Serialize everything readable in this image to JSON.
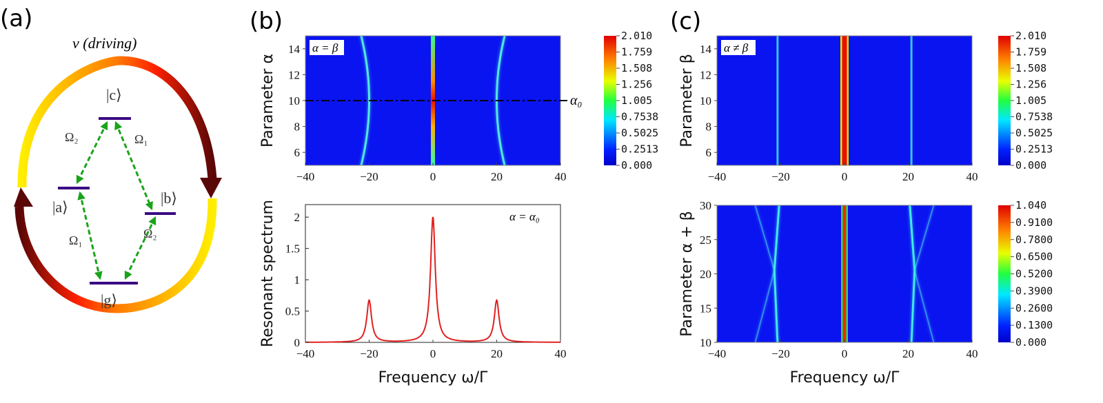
{
  "panel_a": {
    "label": "(a)",
    "driving_label": "ν (driving)",
    "levels": {
      "c": "|c⟩",
      "a": "|a⟩",
      "b": "|b⟩",
      "g": "|g⟩"
    },
    "couplings": {
      "ca": "Ω₂",
      "cb": "Ω₁",
      "ag": "Ω₁",
      "bg": "Ω₂"
    },
    "colors": {
      "level": "#3b0a82",
      "coupling": "#1aa31a",
      "arrow_dark": "#5a0707",
      "arrow_mid": "#ff2a00",
      "arrow_light": "#ffee00"
    }
  },
  "panel_b": {
    "label": "(b)"
  },
  "panel_c": {
    "label": "(c)"
  },
  "chart_data": [
    {
      "id": "b-top",
      "type": "heatmap",
      "annotation": "α = β",
      "ylabel": "Parameter α",
      "xlabel": "",
      "xlim": [
        -40,
        40
      ],
      "ylim": [
        5,
        15
      ],
      "xticks": [
        "−40",
        "−20",
        "0",
        "20",
        "40"
      ],
      "xtick_values": [
        -40,
        -20,
        0,
        20,
        40
      ],
      "yticks": [
        "6",
        "8",
        "10",
        "12",
        "14"
      ],
      "ytick_values": [
        6,
        8,
        10,
        12,
        14
      ],
      "colorbar": [
        "2.010",
        "1.759",
        "1.508",
        "1.256",
        "1.005",
        "0.7538",
        "0.5025",
        "0.2513",
        "0.000"
      ],
      "reference_line": {
        "value": 10,
        "label": "α₀"
      },
      "features": "central peak at ω=0 (max ≈2.0 near α=10); side peaks near ω=±20 bending to ±22.5 at α=5 and α=15"
    },
    {
      "id": "b-bottom",
      "type": "line",
      "annotation": "α = α₀",
      "ylabel": "Resonant spectrum",
      "xlabel": "Frequency ω/Γ",
      "xlim": [
        -40,
        40
      ],
      "ylim": [
        0,
        2.2
      ],
      "xticks": [
        "−40",
        "−20",
        "0",
        "20",
        "40"
      ],
      "xtick_values": [
        -40,
        -20,
        0,
        20,
        40
      ],
      "yticks": [
        "0",
        "0.5",
        "1",
        "1.5",
        "2"
      ],
      "ytick_values": [
        0,
        0.5,
        1,
        1.5,
        2
      ],
      "peaks": [
        {
          "x": -20,
          "y": 0.67,
          "width": 0.9
        },
        {
          "x": 0,
          "y": 2.0,
          "width": 0.9
        },
        {
          "x": 20,
          "y": 0.67,
          "width": 0.9
        }
      ],
      "color": "#e02020"
    },
    {
      "id": "c-top",
      "type": "heatmap",
      "annotation": "α ≠ β",
      "ylabel": "Parameter β",
      "xlabel": "",
      "xlim": [
        -40,
        40
      ],
      "ylim": [
        5,
        15
      ],
      "xticks": [
        "−40",
        "−20",
        "0",
        "20",
        "40"
      ],
      "xtick_values": [
        -40,
        -20,
        0,
        20,
        40
      ],
      "yticks": [
        "6",
        "8",
        "10",
        "12",
        "14"
      ],
      "ytick_values": [
        6,
        8,
        10,
        12,
        14
      ],
      "colorbar": [
        "2.010",
        "1.759",
        "1.508",
        "1.256",
        "1.005",
        "0.7538",
        "0.5025",
        "0.2513",
        "0.000"
      ],
      "features": "straight peaks at ω=0 (red) and ω≈±20 (cyan)"
    },
    {
      "id": "c-bottom",
      "type": "heatmap",
      "annotation": "",
      "ylabel": "Parameter α + β",
      "xlabel": "Frequency ω/Γ",
      "xlim": [
        -40,
        40
      ],
      "ylim": [
        10,
        30
      ],
      "xticks": [
        "−40",
        "−20",
        "0",
        "20",
        "40"
      ],
      "xtick_values": [
        -40,
        -20,
        0,
        20,
        40
      ],
      "yticks": [
        "10",
        "15",
        "20",
        "25",
        "30"
      ],
      "ytick_values": [
        10,
        15,
        20,
        25,
        30
      ],
      "colorbar": [
        "1.040",
        "0.9100",
        "0.7800",
        "0.6500",
        "0.5200",
        "0.3900",
        "0.2600",
        "0.1300",
        "0.000"
      ],
      "features": "central peak at ω=0; side branches cross at α+β≈20.5, ω≈±22"
    }
  ]
}
